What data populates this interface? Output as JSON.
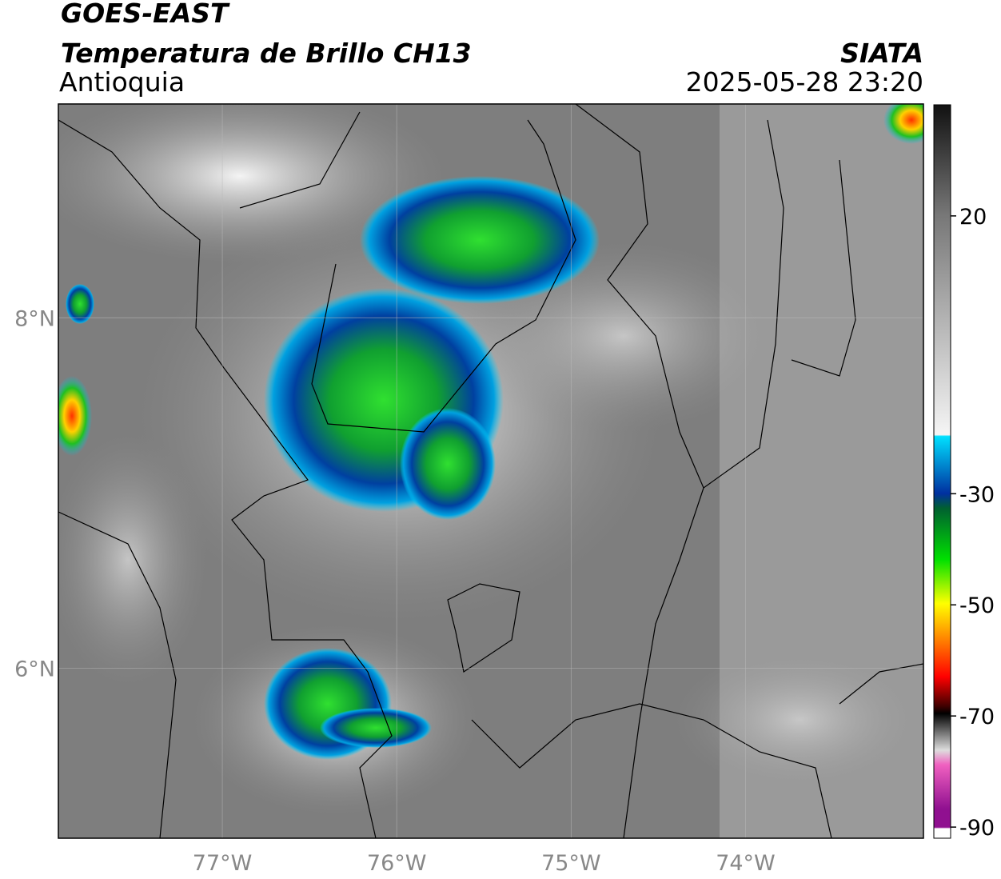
{
  "header": {
    "title": "GOES-EAST",
    "subtitle": "Temperatura de Brillo CH13",
    "region": "Antioquia",
    "source": "SIATA",
    "datetime": "2025-05-28 23:20"
  },
  "map": {
    "xlim": [
      -77.94,
      -72.98
    ],
    "ylim": [
      5.03,
      9.22
    ],
    "xticks": [
      {
        "value": -77,
        "label": "77°W"
      },
      {
        "value": -76,
        "label": "76°W"
      },
      {
        "value": -75,
        "label": "75°W"
      },
      {
        "value": -74,
        "label": "74°W"
      }
    ],
    "yticks": [
      {
        "value": 8,
        "label": "8°N"
      },
      {
        "value": 6,
        "label": "6°N"
      }
    ],
    "grid": true
  },
  "colorbar": {
    "lim": [
      -92,
      40
    ],
    "ticks": [
      20,
      -30,
      -50,
      -70,
      -90
    ]
  }
}
